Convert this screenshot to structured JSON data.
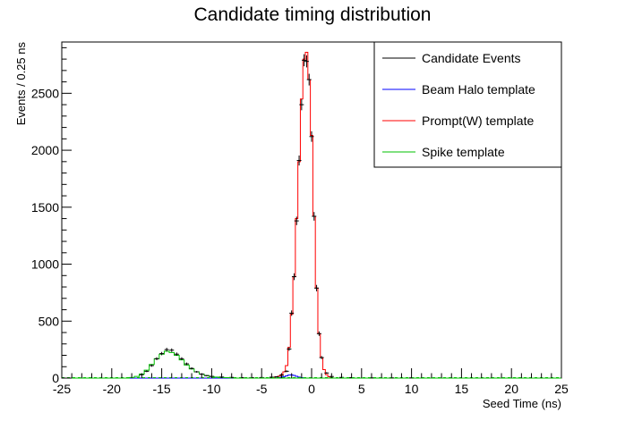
{
  "chart_data": {
    "type": "histogram",
    "title": "Candidate timing distribution",
    "xlabel": "Seed Time (ns)",
    "ylabel": "Events / 0.25 ns",
    "xlim": [
      -25,
      25
    ],
    "ylim": [
      0,
      2950
    ],
    "x_ticks": [
      -25,
      -20,
      -15,
      -10,
      -5,
      0,
      5,
      10,
      15,
      20,
      25
    ],
    "y_ticks": [
      0,
      500,
      1000,
      1500,
      2000,
      2500
    ],
    "grid": false,
    "legend_position": "top-right",
    "legend": [
      {
        "label": "Candidate Events",
        "color": "#000000"
      },
      {
        "label": "Beam Halo template",
        "color": "#0000ff"
      },
      {
        "label": "Prompt(W) template",
        "color": "#ff0000"
      },
      {
        "label": "Spike template",
        "color": "#00c000"
      }
    ],
    "series": [
      {
        "name": "Prompt(W) template",
        "color": "#ff0000",
        "bin_width": 0.25,
        "x": [
          -4.0,
          -3.75,
          -3.5,
          -3.25,
          -3.0,
          -2.75,
          -2.5,
          -2.25,
          -2.0,
          -1.75,
          -1.5,
          -1.25,
          -1.0,
          -0.75,
          -0.5,
          -0.25,
          0.0,
          0.25,
          0.5,
          0.75,
          1.0,
          1.25,
          1.5,
          1.75,
          2.0
        ],
        "y": [
          5,
          8,
          12,
          18,
          30,
          55,
          110,
          270,
          560,
          890,
          1400,
          1900,
          2450,
          2800,
          2860,
          2620,
          2130,
          1420,
          790,
          390,
          180,
          75,
          30,
          12,
          5
        ]
      },
      {
        "name": "Beam Halo template",
        "color": "#0000ff",
        "bin_width": 0.25,
        "x": [
          -3.5,
          -3.25,
          -3.0,
          -2.75,
          -2.5,
          -2.25,
          -2.0,
          -1.75,
          -1.5,
          -1.25,
          -1.0,
          -0.75
        ],
        "y": [
          2,
          4,
          8,
          13,
          20,
          26,
          28,
          24,
          16,
          9,
          4,
          2
        ]
      },
      {
        "name": "Spike template",
        "color": "#00c000",
        "bin_width": 0.5,
        "x": [
          -18.0,
          -17.5,
          -17.0,
          -16.5,
          -16.0,
          -15.5,
          -15.0,
          -14.5,
          -14.0,
          -13.5,
          -13.0,
          -12.5,
          -12.0,
          -11.5,
          -11.0,
          -10.5,
          -10.0,
          -9.5,
          -9.0,
          -8.5,
          -8.0
        ],
        "y": [
          5,
          15,
          35,
          70,
          120,
          170,
          210,
          235,
          225,
          200,
          160,
          115,
          80,
          55,
          35,
          22,
          14,
          9,
          6,
          4,
          2
        ]
      },
      {
        "name": "Candidate Events",
        "color": "#000000",
        "x": [
          -17.0,
          -16.5,
          -16.0,
          -15.5,
          -15.0,
          -14.5,
          -14.0,
          -13.5,
          -13.0,
          -12.5,
          -12.0,
          -11.5,
          -11.0,
          -10.5,
          -10.0,
          -9.0,
          -8.0,
          -7.0,
          -6.0,
          -5.0,
          -4.0,
          -3.5,
          -3.0,
          -2.5,
          -2.25,
          -2.0,
          -1.75,
          -1.5,
          -1.25,
          -1.0,
          -0.75,
          -0.5,
          -0.25,
          0.0,
          0.25,
          0.5,
          0.75,
          1.0,
          1.5,
          2.0,
          3.0,
          4.0,
          6.0,
          8.0,
          10.0
        ],
        "y": [
          30,
          60,
          110,
          170,
          215,
          250,
          245,
          210,
          170,
          125,
          85,
          55,
          35,
          22,
          15,
          9,
          6,
          4,
          4,
          5,
          8,
          12,
          25,
          60,
          255,
          570,
          890,
          1380,
          1910,
          2400,
          2790,
          2780,
          2620,
          2120,
          1420,
          790,
          390,
          180,
          45,
          14,
          6,
          4,
          2,
          2,
          2
        ]
      }
    ]
  }
}
